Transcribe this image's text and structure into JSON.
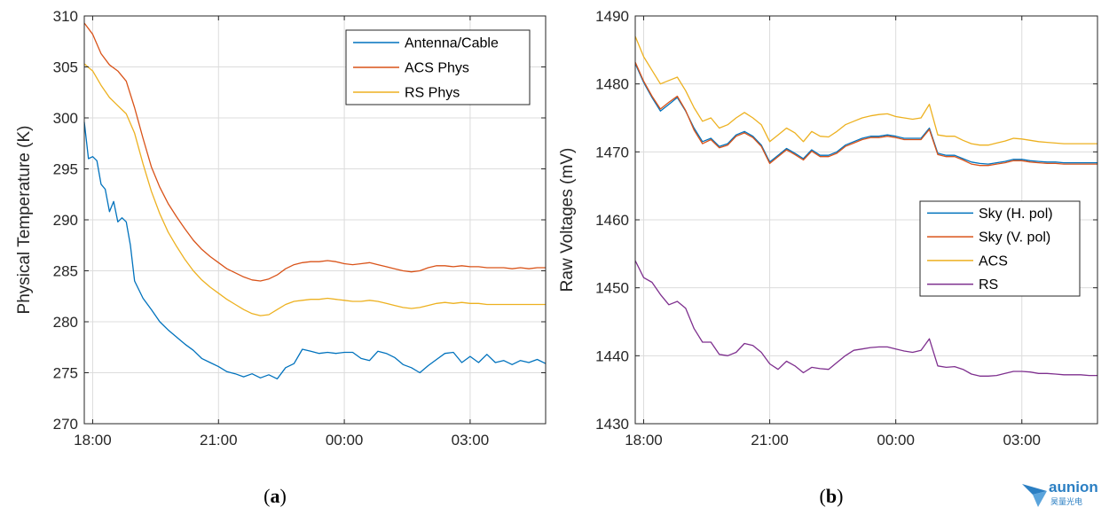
{
  "chart_data": [
    {
      "type": "line",
      "panel_label": "a",
      "title": "",
      "xlabel": "",
      "ylabel": "Physical Temperature (K)",
      "ylim": [
        270,
        310
      ],
      "yticks": [
        270,
        275,
        280,
        285,
        290,
        295,
        300,
        305,
        310
      ],
      "xlim_hours": [
        17.8,
        28.8
      ],
      "xticks": [
        "18:00",
        "21:00",
        "00:00",
        "03:00"
      ],
      "grid": true,
      "legend": "top-right",
      "series": [
        {
          "name": "Antenna/Cable",
          "color": "#0072BD",
          "x_hours": [
            17.8,
            17.9,
            18.0,
            18.1,
            18.2,
            18.3,
            18.4,
            18.5,
            18.6,
            18.7,
            18.8,
            18.9,
            19.0,
            19.2,
            19.4,
            19.6,
            19.8,
            20.0,
            20.2,
            20.4,
            20.6,
            20.8,
            21.0,
            21.2,
            21.4,
            21.6,
            21.8,
            22.0,
            22.2,
            22.4,
            22.6,
            22.8,
            23.0,
            23.2,
            23.4,
            23.6,
            23.8,
            24.0,
            24.2,
            24.4,
            24.6,
            24.8,
            25.0,
            25.2,
            25.4,
            25.6,
            25.8,
            26.0,
            26.2,
            26.4,
            26.6,
            26.8,
            27.0,
            27.2,
            27.4,
            27.6,
            27.8,
            28.0,
            28.2,
            28.4,
            28.6,
            28.8
          ],
          "values": [
            299.6,
            296.0,
            296.2,
            295.8,
            293.5,
            293.0,
            290.8,
            291.8,
            289.8,
            290.2,
            289.8,
            287.5,
            284.0,
            282.3,
            281.2,
            280.0,
            279.2,
            278.5,
            277.8,
            277.2,
            276.4,
            276.0,
            275.6,
            275.1,
            274.9,
            274.6,
            274.9,
            274.5,
            274.8,
            274.4,
            275.5,
            275.9,
            277.3,
            277.1,
            276.9,
            277.0,
            276.9,
            277.0,
            277.0,
            276.4,
            276.2,
            277.1,
            276.9,
            276.5,
            275.8,
            275.5,
            275.0,
            275.7,
            276.3,
            276.9,
            277.0,
            276.0,
            276.6,
            276.0,
            276.8,
            276.0,
            276.2,
            275.8,
            276.2,
            276.0,
            276.3,
            275.9
          ]
        },
        {
          "name": "ACS Phys",
          "color": "#D95319",
          "x_hours": [
            17.8,
            18.0,
            18.2,
            18.4,
            18.6,
            18.8,
            19.0,
            19.2,
            19.4,
            19.6,
            19.8,
            20.0,
            20.2,
            20.4,
            20.6,
            20.8,
            21.0,
            21.2,
            21.4,
            21.6,
            21.8,
            22.0,
            22.2,
            22.4,
            22.6,
            22.8,
            23.0,
            23.2,
            23.4,
            23.6,
            23.8,
            24.0,
            24.2,
            24.4,
            24.6,
            24.8,
            25.0,
            25.2,
            25.4,
            25.6,
            25.8,
            26.0,
            26.2,
            26.4,
            26.6,
            26.8,
            27.0,
            27.2,
            27.4,
            27.6,
            27.8,
            28.0,
            28.2,
            28.4,
            28.6,
            28.8
          ],
          "values": [
            309.3,
            308.2,
            306.3,
            305.2,
            304.6,
            303.6,
            301.0,
            298.0,
            295.2,
            293.2,
            291.6,
            290.3,
            289.1,
            288.0,
            287.1,
            286.4,
            285.8,
            285.2,
            284.8,
            284.4,
            284.1,
            284.0,
            284.2,
            284.6,
            285.2,
            285.6,
            285.8,
            285.9,
            285.9,
            286.0,
            285.9,
            285.7,
            285.6,
            285.7,
            285.8,
            285.6,
            285.4,
            285.2,
            285.0,
            284.9,
            285.0,
            285.3,
            285.5,
            285.5,
            285.4,
            285.5,
            285.4,
            285.4,
            285.3,
            285.3,
            285.3,
            285.2,
            285.3,
            285.2,
            285.3,
            285.3
          ]
        },
        {
          "name": "RS Phys",
          "color": "#EDB120",
          "x_hours": [
            17.8,
            18.0,
            18.2,
            18.4,
            18.6,
            18.8,
            19.0,
            19.2,
            19.4,
            19.6,
            19.8,
            20.0,
            20.2,
            20.4,
            20.6,
            20.8,
            21.0,
            21.2,
            21.4,
            21.6,
            21.8,
            22.0,
            22.2,
            22.4,
            22.6,
            22.8,
            23.0,
            23.2,
            23.4,
            23.6,
            23.8,
            24.0,
            24.2,
            24.4,
            24.6,
            24.8,
            25.0,
            25.2,
            25.4,
            25.6,
            25.8,
            26.0,
            26.2,
            26.4,
            26.6,
            26.8,
            27.0,
            27.2,
            27.4,
            27.6,
            27.8,
            28.0,
            28.2,
            28.4,
            28.6,
            28.8
          ],
          "values": [
            305.3,
            304.6,
            303.2,
            302.0,
            301.2,
            300.4,
            298.5,
            295.5,
            292.8,
            290.6,
            288.8,
            287.4,
            286.1,
            285.0,
            284.1,
            283.4,
            282.8,
            282.2,
            281.7,
            281.2,
            280.8,
            280.6,
            280.7,
            281.2,
            281.7,
            282.0,
            282.1,
            282.2,
            282.2,
            282.3,
            282.2,
            282.1,
            282.0,
            282.0,
            282.1,
            282.0,
            281.8,
            281.6,
            281.4,
            281.3,
            281.4,
            281.6,
            281.8,
            281.9,
            281.8,
            281.9,
            281.8,
            281.8,
            281.7,
            281.7,
            281.7,
            281.7,
            281.7,
            281.7,
            281.7,
            281.7
          ]
        }
      ]
    },
    {
      "type": "line",
      "panel_label": "b",
      "title": "",
      "xlabel": "",
      "ylabel": "Raw Voltages (mV)",
      "ylim": [
        1430,
        1490
      ],
      "yticks": [
        1430,
        1440,
        1450,
        1460,
        1470,
        1480,
        1490
      ],
      "xlim_hours": [
        17.8,
        28.8
      ],
      "xticks": [
        "18:00",
        "21:00",
        "00:00",
        "03:00"
      ],
      "grid": true,
      "legend": "middle-right",
      "series": [
        {
          "name": "Sky (H. pol)",
          "color": "#0072BD",
          "x_hours": [
            17.8,
            18.0,
            18.2,
            18.4,
            18.6,
            18.8,
            19.0,
            19.2,
            19.4,
            19.6,
            19.8,
            20.0,
            20.2,
            20.4,
            20.6,
            20.8,
            21.0,
            21.2,
            21.4,
            21.6,
            21.8,
            22.0,
            22.2,
            22.4,
            22.6,
            22.8,
            23.0,
            23.2,
            23.4,
            23.6,
            23.8,
            24.0,
            24.2,
            24.4,
            24.6,
            24.8,
            25.0,
            25.2,
            25.4,
            25.6,
            25.8,
            26.0,
            26.2,
            26.4,
            26.6,
            26.8,
            27.0,
            27.2,
            27.4,
            27.6,
            27.8,
            28.0,
            28.2,
            28.4,
            28.6,
            28.8
          ],
          "values": [
            1483.0,
            1480.2,
            1478.0,
            1476.0,
            1477.0,
            1478.0,
            1476.0,
            1473.5,
            1471.5,
            1472.0,
            1470.8,
            1471.2,
            1472.5,
            1473.0,
            1472.3,
            1471.0,
            1468.5,
            1469.5,
            1470.5,
            1469.8,
            1469.0,
            1470.3,
            1469.5,
            1469.5,
            1470.0,
            1471.0,
            1471.5,
            1472.0,
            1472.3,
            1472.3,
            1472.5,
            1472.3,
            1472.0,
            1472.0,
            1472.0,
            1473.5,
            1469.8,
            1469.5,
            1469.5,
            1469.0,
            1468.5,
            1468.3,
            1468.2,
            1468.4,
            1468.6,
            1468.9,
            1468.9,
            1468.7,
            1468.6,
            1468.5,
            1468.5,
            1468.4,
            1468.4,
            1468.4,
            1468.4,
            1468.4
          ]
        },
        {
          "name": "Sky (V. pol)",
          "color": "#D95319",
          "x_hours": [
            17.8,
            18.0,
            18.2,
            18.4,
            18.6,
            18.8,
            19.0,
            19.2,
            19.4,
            19.6,
            19.8,
            20.0,
            20.2,
            20.4,
            20.6,
            20.8,
            21.0,
            21.2,
            21.4,
            21.6,
            21.8,
            22.0,
            22.2,
            22.4,
            22.6,
            22.8,
            23.0,
            23.2,
            23.4,
            23.6,
            23.8,
            24.0,
            24.2,
            24.4,
            24.6,
            24.8,
            25.0,
            25.2,
            25.4,
            25.6,
            25.8,
            26.0,
            26.2,
            26.4,
            26.6,
            26.8,
            27.0,
            27.2,
            27.4,
            27.6,
            27.8,
            28.0,
            28.2,
            28.4,
            28.6,
            28.8
          ],
          "values": [
            1483.2,
            1480.4,
            1478.2,
            1476.3,
            1477.3,
            1478.2,
            1476.1,
            1473.2,
            1471.2,
            1471.8,
            1470.6,
            1471.0,
            1472.3,
            1472.8,
            1472.1,
            1470.8,
            1468.3,
            1469.3,
            1470.3,
            1469.6,
            1468.8,
            1470.1,
            1469.3,
            1469.3,
            1469.8,
            1470.8,
            1471.3,
            1471.8,
            1472.1,
            1472.1,
            1472.3,
            1472.1,
            1471.8,
            1471.8,
            1471.8,
            1473.3,
            1469.6,
            1469.3,
            1469.3,
            1468.8,
            1468.2,
            1468.0,
            1468.0,
            1468.2,
            1468.4,
            1468.7,
            1468.7,
            1468.5,
            1468.4,
            1468.3,
            1468.3,
            1468.2,
            1468.2,
            1468.2,
            1468.2,
            1468.2
          ]
        },
        {
          "name": "ACS",
          "color": "#EDB120",
          "x_hours": [
            17.8,
            18.0,
            18.2,
            18.4,
            18.6,
            18.8,
            19.0,
            19.2,
            19.4,
            19.6,
            19.8,
            20.0,
            20.2,
            20.4,
            20.6,
            20.8,
            21.0,
            21.2,
            21.4,
            21.6,
            21.8,
            22.0,
            22.2,
            22.4,
            22.6,
            22.8,
            23.0,
            23.2,
            23.4,
            23.6,
            23.8,
            24.0,
            24.2,
            24.4,
            24.6,
            24.8,
            25.0,
            25.2,
            25.4,
            25.6,
            25.8,
            26.0,
            26.2,
            26.4,
            26.6,
            26.8,
            27.0,
            27.2,
            27.4,
            27.6,
            27.8,
            28.0,
            28.2,
            28.4,
            28.6,
            28.8
          ],
          "values": [
            1487.0,
            1484.0,
            1482.0,
            1480.0,
            1480.5,
            1481.0,
            1479.0,
            1476.5,
            1474.5,
            1475.0,
            1473.5,
            1474.0,
            1475.0,
            1475.8,
            1475.0,
            1474.0,
            1471.5,
            1472.5,
            1473.5,
            1472.8,
            1471.5,
            1473.0,
            1472.3,
            1472.2,
            1473.0,
            1474.0,
            1474.5,
            1475.0,
            1475.3,
            1475.5,
            1475.6,
            1475.2,
            1475.0,
            1474.8,
            1475.0,
            1477.0,
            1472.5,
            1472.3,
            1472.3,
            1471.7,
            1471.2,
            1471.0,
            1471.0,
            1471.3,
            1471.6,
            1472.0,
            1471.9,
            1471.7,
            1471.5,
            1471.4,
            1471.3,
            1471.2,
            1471.2,
            1471.2,
            1471.2,
            1471.2
          ]
        },
        {
          "name": "RS",
          "color": "#7E2F8E",
          "x_hours": [
            17.8,
            18.0,
            18.2,
            18.4,
            18.6,
            18.8,
            19.0,
            19.2,
            19.4,
            19.6,
            19.8,
            20.0,
            20.2,
            20.4,
            20.6,
            20.8,
            21.0,
            21.2,
            21.4,
            21.6,
            21.8,
            22.0,
            22.2,
            22.4,
            22.6,
            22.8,
            23.0,
            23.2,
            23.4,
            23.6,
            23.8,
            24.0,
            24.2,
            24.4,
            24.6,
            24.8,
            25.0,
            25.2,
            25.4,
            25.6,
            25.8,
            26.0,
            26.2,
            26.4,
            26.6,
            26.8,
            27.0,
            27.2,
            27.4,
            27.6,
            27.8,
            28.0,
            28.2,
            28.4,
            28.6,
            28.8
          ],
          "values": [
            1454.0,
            1451.5,
            1450.8,
            1449.0,
            1447.5,
            1448.0,
            1447.0,
            1444.0,
            1442.0,
            1442.0,
            1440.2,
            1440.0,
            1440.5,
            1441.8,
            1441.5,
            1440.5,
            1438.8,
            1438.0,
            1439.2,
            1438.5,
            1437.5,
            1438.3,
            1438.1,
            1438.0,
            1439.0,
            1440.0,
            1440.8,
            1441.0,
            1441.2,
            1441.3,
            1441.3,
            1441.0,
            1440.7,
            1440.5,
            1440.8,
            1442.5,
            1438.5,
            1438.3,
            1438.4,
            1438.0,
            1437.3,
            1437.0,
            1437.0,
            1437.1,
            1437.4,
            1437.7,
            1437.7,
            1437.6,
            1437.4,
            1437.4,
            1437.3,
            1437.2,
            1437.2,
            1437.2,
            1437.1,
            1437.1
          ]
        }
      ]
    }
  ],
  "watermark": {
    "brand": "aunion",
    "subtitle": "昊量光电",
    "color": "#2b7fc3"
  }
}
